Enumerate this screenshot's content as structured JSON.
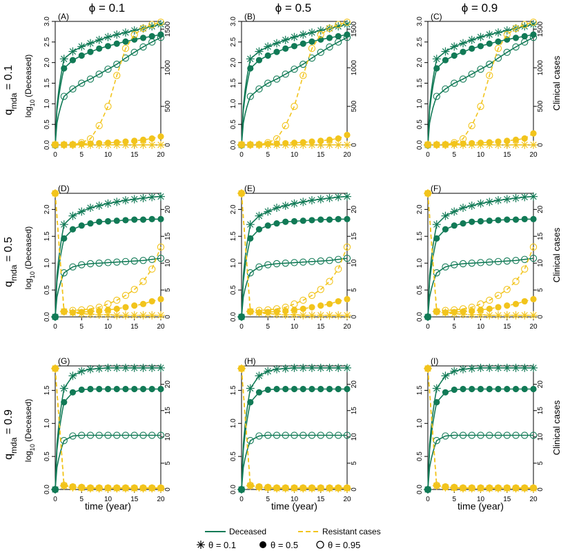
{
  "figure": {
    "col_headers": [
      "ϕ = 0.1",
      "ϕ = 0.5",
      "ϕ = 0.9"
    ],
    "row_headers": [
      "0.1",
      "0.5",
      "0.9"
    ],
    "row_header_symbol": "q",
    "row_header_subscript": "mda",
    "row_header_equals": " = ",
    "left_axis_label": "log10 (Deceased)",
    "left_axis_label_parts": [
      "log",
      "10",
      " (Deceased)"
    ],
    "right_axis_label": "Clinical cases",
    "x_axis_label": "time (year)",
    "legend": {
      "deceased": "Deceased",
      "resistant": "Resistant cases",
      "theta1": "θ = 0.1",
      "theta2": "θ = 0.5",
      "theta3": "θ = 0.95"
    },
    "colors": {
      "deceased": "#117a56",
      "resistant": "#f2c41c"
    }
  },
  "chart_data": {
    "type": "line",
    "x": [
      0,
      1.67,
      3.33,
      5,
      6.67,
      8.33,
      10,
      11.67,
      13.33,
      15,
      16.67,
      18.33,
      20
    ],
    "xlim": [
      0,
      20
    ],
    "xticks": [
      0,
      5,
      10,
      15,
      20
    ],
    "panels": [
      {
        "label": "(A)",
        "row": 0,
        "col": 0,
        "ylim_left": [
          0,
          3
        ],
        "yticks_left": [
          "0.0",
          "0.5",
          "1.0",
          "1.5",
          "2.0",
          "2.5",
          "3.0"
        ],
        "ylim_right": [
          0,
          1600
        ],
        "yticks_right": [
          "0",
          "500",
          "1000",
          "1500"
        ],
        "deceased": [
          [
            0,
            2.09,
            2.27,
            2.39,
            2.47,
            2.55,
            2.62,
            2.68,
            2.73,
            2.78,
            2.83,
            2.88,
            2.93
          ],
          [
            0,
            1.86,
            2.06,
            2.17,
            2.26,
            2.34,
            2.4,
            2.46,
            2.51,
            2.56,
            2.6,
            2.64,
            2.68
          ],
          [
            0,
            1.18,
            1.36,
            1.5,
            1.6,
            1.72,
            1.84,
            1.96,
            2.11,
            2.25,
            2.38,
            2.5,
            2.61
          ]
        ],
        "resistant": [
          [
            4,
            2,
            2,
            2,
            2,
            2,
            2,
            2,
            2,
            2,
            2,
            2,
            2
          ],
          [
            4,
            6,
            10,
            14,
            18,
            23,
            28,
            35,
            44,
            54,
            67,
            84,
            110
          ],
          [
            4,
            3,
            3,
            30,
            80,
            250,
            500,
            900,
            1250,
            1430,
            1510,
            1560,
            1590
          ]
        ]
      },
      {
        "label": "(B)",
        "row": 0,
        "col": 1,
        "ylim_left": [
          0,
          3
        ],
        "yticks_left": [
          "0.0",
          "0.5",
          "1.0",
          "1.5",
          "2.0",
          "2.5",
          "3.0"
        ],
        "ylim_right": [
          0,
          1600
        ],
        "yticks_right": [
          "0",
          "500",
          "1000",
          "1500"
        ],
        "deceased": [
          [
            0,
            2.09,
            2.27,
            2.39,
            2.47,
            2.55,
            2.62,
            2.68,
            2.73,
            2.78,
            2.83,
            2.88,
            2.93
          ],
          [
            0,
            1.86,
            2.06,
            2.17,
            2.26,
            2.34,
            2.4,
            2.46,
            2.51,
            2.56,
            2.6,
            2.64,
            2.68
          ],
          [
            0,
            1.18,
            1.36,
            1.5,
            1.6,
            1.72,
            1.84,
            1.96,
            2.11,
            2.25,
            2.38,
            2.5,
            2.61
          ]
        ],
        "resistant": [
          [
            4,
            2,
            2,
            2,
            2,
            2,
            2,
            2,
            2,
            2,
            2,
            2,
            2
          ],
          [
            4,
            6,
            10,
            14,
            18,
            23,
            28,
            35,
            44,
            54,
            67,
            84,
            130
          ],
          [
            4,
            3,
            3,
            30,
            80,
            250,
            500,
            900,
            1250,
            1430,
            1510,
            1560,
            1590
          ]
        ]
      },
      {
        "label": "(C)",
        "row": 0,
        "col": 2,
        "ylim_left": [
          0,
          3
        ],
        "yticks_left": [
          "0.0",
          "0.5",
          "1.0",
          "1.5",
          "2.0",
          "2.5",
          "3.0"
        ],
        "ylim_right": [
          0,
          1600
        ],
        "yticks_right": [
          "0",
          "500",
          "1000",
          "1500"
        ],
        "deceased": [
          [
            0,
            2.09,
            2.27,
            2.39,
            2.47,
            2.55,
            2.62,
            2.68,
            2.73,
            2.78,
            2.83,
            2.88,
            2.93
          ],
          [
            0,
            1.86,
            2.06,
            2.17,
            2.26,
            2.34,
            2.4,
            2.46,
            2.51,
            2.56,
            2.6,
            2.64,
            2.68
          ],
          [
            0,
            1.18,
            1.36,
            1.5,
            1.6,
            1.72,
            1.84,
            1.96,
            2.11,
            2.25,
            2.38,
            2.5,
            2.61
          ]
        ],
        "resistant": [
          [
            4,
            2,
            2,
            2,
            2,
            2,
            2,
            2,
            2,
            2,
            2,
            2,
            2
          ],
          [
            4,
            6,
            10,
            14,
            18,
            23,
            28,
            35,
            44,
            54,
            67,
            84,
            150
          ],
          [
            4,
            3,
            3,
            30,
            80,
            250,
            500,
            900,
            1250,
            1430,
            1510,
            1560,
            1590
          ]
        ]
      },
      {
        "label": "(D)",
        "row": 1,
        "col": 0,
        "ylim_left": [
          0,
          2.3
        ],
        "yticks_left": [
          "0.0",
          "0.5",
          "1.0",
          "1.5",
          "2.0"
        ],
        "ylim_right": [
          0,
          23
        ],
        "yticks_right": [
          "0",
          "5",
          "10",
          "15",
          "20"
        ],
        "deceased": [
          [
            0,
            1.72,
            1.88,
            1.96,
            2.03,
            2.07,
            2.11,
            2.14,
            2.17,
            2.19,
            2.21,
            2.23,
            2.24
          ],
          [
            0,
            1.46,
            1.63,
            1.7,
            1.74,
            1.77,
            1.78,
            1.79,
            1.8,
            1.81,
            1.81,
            1.82,
            1.82
          ],
          [
            0,
            0.82,
            0.93,
            0.97,
            0.99,
            1.0,
            1.01,
            1.02,
            1.03,
            1.04,
            1.05,
            1.07,
            1.09
          ]
        ],
        "resistant": [
          [
            23,
            1,
            0.8,
            0.6,
            0.5,
            0.4,
            0.4,
            0.3,
            0.3,
            0.3,
            0.3,
            0.3,
            0.3
          ],
          [
            23,
            1,
            0.8,
            0.9,
            1.0,
            1.1,
            1.3,
            1.5,
            1.8,
            2.1,
            2.4,
            2.9,
            3.3
          ],
          [
            23,
            1,
            1.2,
            1.3,
            1.5,
            1.8,
            2.4,
            3.1,
            4.0,
            5.1,
            6.6,
            8.9,
            13.0
          ]
        ]
      },
      {
        "label": "(E)",
        "row": 1,
        "col": 1,
        "ylim_left": [
          0,
          2.3
        ],
        "yticks_left": [
          "0.0",
          "0.5",
          "1.0",
          "1.5",
          "2.0"
        ],
        "ylim_right": [
          0,
          23
        ],
        "yticks_right": [
          "0",
          "5",
          "10",
          "15",
          "20"
        ],
        "deceased": [
          [
            0,
            1.72,
            1.88,
            1.96,
            2.03,
            2.07,
            2.11,
            2.14,
            2.17,
            2.19,
            2.21,
            2.23,
            2.24
          ],
          [
            0,
            1.46,
            1.63,
            1.7,
            1.74,
            1.77,
            1.78,
            1.79,
            1.8,
            1.81,
            1.81,
            1.82,
            1.82
          ],
          [
            0,
            0.82,
            0.93,
            0.97,
            0.99,
            1.0,
            1.01,
            1.02,
            1.03,
            1.04,
            1.05,
            1.07,
            1.09
          ]
        ],
        "resistant": [
          [
            23,
            1,
            0.8,
            0.6,
            0.5,
            0.4,
            0.4,
            0.3,
            0.3,
            0.3,
            0.3,
            0.3,
            0.3
          ],
          [
            23,
            1,
            0.8,
            0.9,
            1.0,
            1.1,
            1.3,
            1.5,
            1.8,
            2.1,
            2.4,
            2.9,
            3.3
          ],
          [
            23,
            1,
            1.2,
            1.3,
            1.5,
            1.8,
            2.4,
            3.1,
            4.0,
            5.1,
            6.6,
            8.9,
            13.0
          ]
        ]
      },
      {
        "label": "(F)",
        "row": 1,
        "col": 2,
        "ylim_left": [
          0,
          2.3
        ],
        "yticks_left": [
          "0.0",
          "0.5",
          "1.0",
          "1.5",
          "2.0"
        ],
        "ylim_right": [
          0,
          23
        ],
        "yticks_right": [
          "0",
          "5",
          "10",
          "15",
          "20"
        ],
        "deceased": [
          [
            0,
            1.72,
            1.88,
            1.96,
            2.03,
            2.07,
            2.11,
            2.14,
            2.17,
            2.19,
            2.21,
            2.23,
            2.24
          ],
          [
            0,
            1.46,
            1.63,
            1.7,
            1.74,
            1.77,
            1.78,
            1.79,
            1.8,
            1.81,
            1.81,
            1.82,
            1.82
          ],
          [
            0,
            0.82,
            0.93,
            0.97,
            0.99,
            1.0,
            1.01,
            1.02,
            1.03,
            1.04,
            1.05,
            1.07,
            1.09
          ]
        ],
        "resistant": [
          [
            23,
            1,
            0.8,
            0.6,
            0.5,
            0.4,
            0.4,
            0.3,
            0.3,
            0.3,
            0.3,
            0.3,
            0.3
          ],
          [
            23,
            1,
            0.8,
            0.9,
            1.0,
            1.1,
            1.3,
            1.5,
            1.8,
            2.1,
            2.4,
            2.9,
            3.3
          ],
          [
            23,
            1,
            1.2,
            1.3,
            1.5,
            1.8,
            2.4,
            3.1,
            4.0,
            5.1,
            6.6,
            8.9,
            13.0
          ]
        ]
      },
      {
        "label": "(G)",
        "row": 2,
        "col": 0,
        "ylim_left": [
          0,
          1.87
        ],
        "yticks_left": [
          "0.0",
          "0.5",
          "1.0",
          "1.5"
        ],
        "ylim_right": [
          0,
          23.5
        ],
        "yticks_right": [
          "0",
          "5",
          "10",
          "15",
          "20"
        ],
        "deceased": [
          [
            0,
            1.53,
            1.72,
            1.79,
            1.82,
            1.83,
            1.84,
            1.84,
            1.84,
            1.84,
            1.84,
            1.84,
            1.84
          ],
          [
            0,
            1.32,
            1.47,
            1.51,
            1.52,
            1.52,
            1.52,
            1.52,
            1.52,
            1.52,
            1.52,
            1.52,
            1.52
          ],
          [
            0,
            0.74,
            0.81,
            0.82,
            0.82,
            0.82,
            0.82,
            0.82,
            0.82,
            0.82,
            0.82,
            0.82,
            0.82
          ]
        ],
        "resistant": [
          [
            23,
            0.7,
            0.4,
            0.3,
            0.2,
            0.2,
            0.2,
            0.2,
            0.2,
            0.2,
            0.2,
            0.2,
            0.2
          ],
          [
            23,
            0.7,
            0.5,
            0.4,
            0.3,
            0.3,
            0.3,
            0.3,
            0.3,
            0.3,
            0.3,
            0.3,
            0.3
          ],
          [
            23,
            0.8,
            0.5,
            0.4,
            0.3,
            0.3,
            0.3,
            0.3,
            0.3,
            0.3,
            0.3,
            0.3,
            0.3
          ]
        ]
      },
      {
        "label": "(H)",
        "row": 2,
        "col": 1,
        "ylim_left": [
          0,
          1.87
        ],
        "yticks_left": [
          "0.0",
          "0.5",
          "1.0",
          "1.5"
        ],
        "ylim_right": [
          0,
          23.5
        ],
        "yticks_right": [
          "0",
          "5",
          "10",
          "15",
          "20"
        ],
        "deceased": [
          [
            0,
            1.53,
            1.72,
            1.79,
            1.82,
            1.83,
            1.84,
            1.84,
            1.84,
            1.84,
            1.84,
            1.84,
            1.84
          ],
          [
            0,
            1.32,
            1.47,
            1.51,
            1.52,
            1.52,
            1.52,
            1.52,
            1.52,
            1.52,
            1.52,
            1.52,
            1.52
          ],
          [
            0,
            0.74,
            0.81,
            0.82,
            0.82,
            0.82,
            0.82,
            0.82,
            0.82,
            0.82,
            0.82,
            0.82,
            0.82
          ]
        ],
        "resistant": [
          [
            23,
            0.7,
            0.4,
            0.3,
            0.2,
            0.2,
            0.2,
            0.2,
            0.2,
            0.2,
            0.2,
            0.2,
            0.2
          ],
          [
            23,
            0.7,
            0.5,
            0.4,
            0.3,
            0.3,
            0.3,
            0.3,
            0.3,
            0.3,
            0.3,
            0.3,
            0.3
          ],
          [
            23,
            0.8,
            0.5,
            0.4,
            0.3,
            0.3,
            0.3,
            0.3,
            0.3,
            0.3,
            0.3,
            0.3,
            0.3
          ]
        ]
      },
      {
        "label": "(I)",
        "row": 2,
        "col": 2,
        "ylim_left": [
          0,
          1.87
        ],
        "yticks_left": [
          "0.0",
          "0.5",
          "1.0",
          "1.5"
        ],
        "ylim_right": [
          0,
          23.5
        ],
        "yticks_right": [
          "0",
          "5",
          "10",
          "15",
          "20"
        ],
        "deceased": [
          [
            0,
            1.53,
            1.72,
            1.79,
            1.82,
            1.83,
            1.84,
            1.84,
            1.84,
            1.84,
            1.84,
            1.84,
            1.84
          ],
          [
            0,
            1.32,
            1.47,
            1.51,
            1.52,
            1.52,
            1.52,
            1.52,
            1.52,
            1.52,
            1.52,
            1.52,
            1.52
          ],
          [
            0,
            0.74,
            0.81,
            0.82,
            0.82,
            0.82,
            0.82,
            0.82,
            0.82,
            0.82,
            0.82,
            0.82,
            0.82
          ]
        ],
        "resistant": [
          [
            23,
            0.7,
            0.4,
            0.3,
            0.2,
            0.2,
            0.2,
            0.2,
            0.2,
            0.2,
            0.2,
            0.2,
            0.2
          ],
          [
            23,
            0.7,
            0.5,
            0.4,
            0.3,
            0.3,
            0.3,
            0.3,
            0.3,
            0.3,
            0.3,
            0.3,
            0.3
          ],
          [
            23,
            0.8,
            0.5,
            0.4,
            0.3,
            0.3,
            0.3,
            0.3,
            0.3,
            0.3,
            0.3,
            0.3,
            0.3
          ]
        ]
      }
    ]
  }
}
